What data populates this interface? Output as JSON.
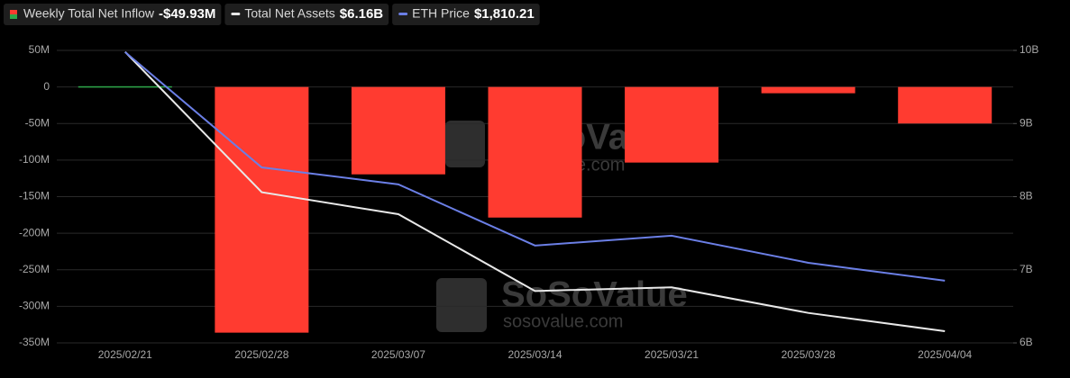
{
  "chart_data": {
    "type": "bar-line",
    "categories": [
      "2025/02/21",
      "2025/02/28",
      "2025/03/07",
      "2025/03/14",
      "2025/03/21",
      "2025/03/28",
      "2025/04/04"
    ],
    "series": [
      {
        "name": "Weekly Total Net Inflow",
        "legend_value": "-$49.93M",
        "type": "bar",
        "axis": "y",
        "color": "#ff3b30",
        "positive_color": "#2ea84a",
        "values": [
          1,
          -336,
          -119.5,
          -178.6,
          -103.4,
          -8.6,
          -49.93
        ]
      },
      {
        "name": "Total Net Assets",
        "legend_value": "$6.16B",
        "type": "line",
        "axis": "y2",
        "color": "#e8e8e8",
        "values": [
          9.98,
          8.06,
          7.76,
          6.71,
          6.76,
          6.41,
          6.16
        ]
      },
      {
        "name": "ETH Price",
        "legend_value": "$1,810.21",
        "type": "line",
        "axis": "y3",
        "color": "#6b7fe6",
        "values": [
          2740,
          2271,
          2202,
          1953,
          1993,
          1883,
          1810.21
        ]
      }
    ],
    "ylim": [
      -350,
      50
    ],
    "yticks": [
      {
        "value": 50,
        "label": "50M"
      },
      0,
      {
        "value": -50,
        "label": "-50M"
      },
      {
        "value": -100,
        "label": "-100M"
      },
      {
        "value": -150,
        "label": "-150M"
      },
      {
        "value": -200,
        "label": "-200M"
      },
      {
        "value": -250,
        "label": "-250M"
      },
      {
        "value": -300,
        "label": "-300M"
      },
      {
        "value": -350,
        "label": "-350M"
      }
    ],
    "y2lim": [
      6,
      10
    ],
    "y2ticks": [
      {
        "value": 10,
        "label": "10B"
      },
      {
        "value": 9,
        "label": "9B"
      },
      {
        "value": 8,
        "label": "8B"
      },
      {
        "value": 7,
        "label": "7B"
      },
      {
        "value": 6,
        "label": "6B"
      }
    ],
    "y3lim": [
      1557,
      2747
    ],
    "grid": true,
    "watermark": [
      "SoSoValue",
      "sosovalue.com"
    ]
  }
}
